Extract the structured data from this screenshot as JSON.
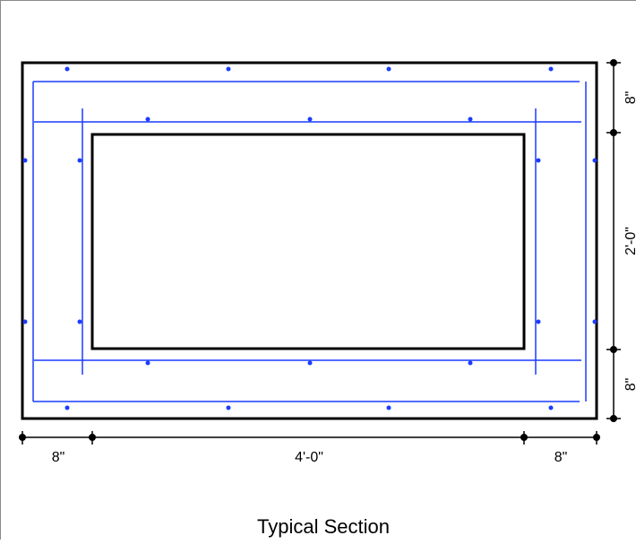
{
  "title": "Typical Section",
  "dimensions": {
    "bottom_left": "8\"",
    "bottom_middle": "4'-0\"",
    "bottom_right": "8\"",
    "right_top": "8\"",
    "right_middle": "2'-0\"",
    "right_bottom": "8\""
  },
  "colors": {
    "concrete_outline": "#000000",
    "rebar": "#1a3cff",
    "dimension": "#000000"
  }
}
